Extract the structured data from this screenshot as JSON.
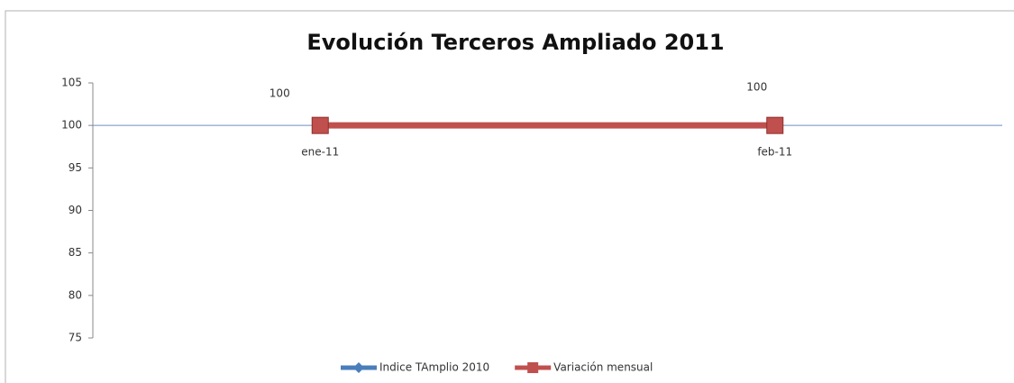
{
  "chart_data": {
    "type": "line",
    "title": "Evolución Terceros Ampliado 2011",
    "categories": [
      "ene-11",
      "feb-11"
    ],
    "series": [
      {
        "name": "Indice TAmplio 2010",
        "color": "#4a7ebb",
        "marker": "diamond",
        "values": [
          100,
          100
        ]
      },
      {
        "name": "Variación mensual",
        "color": "#c0504d",
        "marker": "square",
        "values": [
          100,
          100
        ]
      }
    ],
    "data_labels_series": 1,
    "ylim": [
      75,
      105
    ],
    "yticks": [
      75,
      80,
      85,
      90,
      95,
      100,
      105
    ],
    "grid": false,
    "legend": "bottom"
  }
}
